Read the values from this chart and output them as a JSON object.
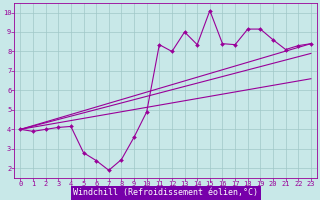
{
  "xlabel": "Windchill (Refroidissement éolien,°C)",
  "bg_color": "#c8e8e8",
  "grid_color": "#a0c8c8",
  "line_color": "#990099",
  "axis_label_bg": "#7700aa",
  "axis_label_fg": "#ffffff",
  "xlim": [
    -0.5,
    23.5
  ],
  "ylim": [
    1.5,
    10.5
  ],
  "xticks": [
    0,
    1,
    2,
    3,
    4,
    5,
    6,
    7,
    8,
    9,
    10,
    11,
    12,
    13,
    14,
    15,
    16,
    17,
    18,
    19,
    20,
    21,
    22,
    23
  ],
  "yticks": [
    2,
    3,
    4,
    5,
    6,
    7,
    8,
    9,
    10
  ],
  "main_x": [
    0,
    1,
    2,
    3,
    4,
    5,
    6,
    7,
    8,
    9,
    10,
    11,
    12,
    13,
    14,
    15,
    16,
    17,
    18,
    19,
    20,
    21,
    22,
    23
  ],
  "main_y": [
    4.0,
    3.9,
    4.0,
    4.1,
    4.15,
    2.8,
    2.4,
    1.9,
    2.45,
    3.6,
    4.9,
    8.35,
    8.0,
    9.0,
    8.35,
    10.1,
    8.4,
    8.35,
    9.15,
    9.15,
    8.6,
    8.1,
    8.3,
    8.4
  ],
  "trend_lines": [
    {
      "x": [
        0,
        23
      ],
      "y": [
        4.0,
        8.4
      ]
    },
    {
      "x": [
        0,
        23
      ],
      "y": [
        4.0,
        7.9
      ]
    },
    {
      "x": [
        0,
        23
      ],
      "y": [
        4.0,
        6.6
      ]
    }
  ],
  "tick_fontsize": 5,
  "label_fontsize": 6
}
